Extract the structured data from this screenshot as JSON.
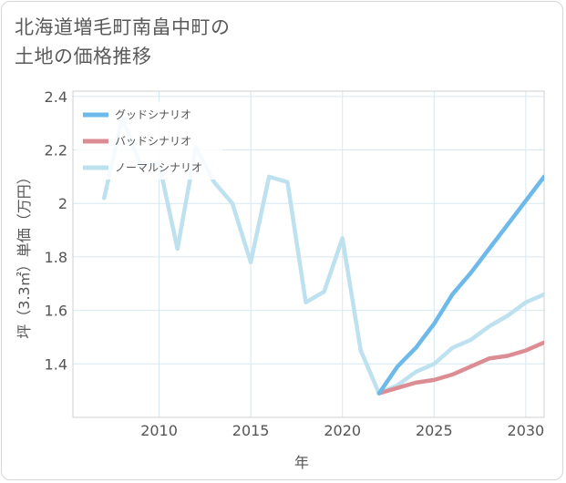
{
  "title_lines": [
    "北海道増毛町南畠中町の",
    "土地の価格推移"
  ],
  "chart_data": {
    "type": "line",
    "title": "北海道増毛町南畠中町の土地の価格推移",
    "xlabel": "年",
    "ylabel": "坪（3.3㎡）単価（万円）",
    "xlim": [
      2005.3,
      2031
    ],
    "ylim": [
      1.2,
      2.42
    ],
    "x_ticks": [
      2010,
      2015,
      2020,
      2025,
      2030
    ],
    "y_ticks": [
      1.4,
      1.6,
      1.8,
      2,
      2.2,
      2.4
    ],
    "y_tick_labels": [
      "1.4",
      "1.6",
      "1.8",
      "2",
      "2.2",
      "2.4"
    ],
    "grid": true,
    "legend_position": "top-left",
    "series": [
      {
        "name": "グッドシナリオ",
        "color": "#6cb9ea",
        "x": [
          2022,
          2023,
          2024,
          2025,
          2026,
          2027,
          2028,
          2029,
          2030,
          2031
        ],
        "y": [
          1.29,
          1.39,
          1.46,
          1.55,
          1.66,
          1.74,
          1.83,
          1.92,
          2.01,
          2.1
        ]
      },
      {
        "name": "バッドシナリオ",
        "color": "#dc8d93",
        "x": [
          2022,
          2023,
          2024,
          2025,
          2026,
          2027,
          2028,
          2029,
          2030,
          2031
        ],
        "y": [
          1.29,
          1.31,
          1.33,
          1.34,
          1.36,
          1.39,
          1.42,
          1.43,
          1.45,
          1.48
        ]
      },
      {
        "name": "ノーマルシナリオ",
        "color": "#bde1ee",
        "x": [
          2007,
          2008,
          2009,
          2010,
          2011,
          2012,
          2013,
          2014,
          2015,
          2016,
          2017,
          2018,
          2019,
          2020,
          2021,
          2022,
          2023,
          2024,
          2025,
          2026,
          2027,
          2028,
          2029,
          2030,
          2031
        ],
        "y": [
          2.02,
          2.32,
          2.14,
          2.15,
          1.83,
          2.21,
          2.08,
          2.0,
          1.78,
          2.1,
          2.08,
          1.63,
          1.67,
          1.87,
          1.45,
          1.29,
          1.32,
          1.37,
          1.4,
          1.46,
          1.49,
          1.54,
          1.58,
          1.63,
          1.66
        ]
      }
    ]
  }
}
